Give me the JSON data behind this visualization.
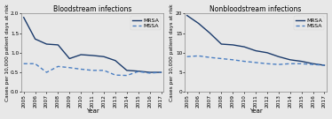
{
  "years": [
    2005,
    2006,
    2007,
    2008,
    2009,
    2010,
    2011,
    2012,
    2013,
    2014,
    2015,
    2016,
    2017
  ],
  "bloodstream": {
    "title": "Bloodstream infections",
    "ylabel": "Cases per 10,000 patient days at risk",
    "xlabel": "Year",
    "ylim": [
      0,
      2.0
    ],
    "yticks": [
      0,
      0.5,
      1.0,
      1.5,
      2.0
    ],
    "mrsa": [
      1.9,
      1.35,
      1.22,
      1.2,
      0.85,
      0.95,
      0.93,
      0.9,
      0.8,
      0.55,
      0.53,
      0.5,
      0.5
    ],
    "mssa": [
      0.72,
      0.72,
      0.5,
      0.65,
      0.62,
      0.58,
      0.55,
      0.55,
      0.43,
      0.42,
      0.52,
      0.48,
      0.5
    ]
  },
  "nonbloodstream": {
    "title": "Nonbloodstream infections",
    "ylabel": "Cases per 10,000 patient days at risk",
    "xlabel": "Year",
    "ylim": [
      0,
      20
    ],
    "yticks": [
      0,
      5,
      10,
      15,
      20
    ],
    "mrsa": [
      19.5,
      17.5,
      15.0,
      12.2,
      12.0,
      11.5,
      10.5,
      10.0,
      9.0,
      8.2,
      7.8,
      7.2,
      6.8
    ],
    "mssa": [
      9.0,
      9.2,
      8.8,
      8.5,
      8.2,
      7.8,
      7.5,
      7.2,
      7.0,
      7.2,
      7.2,
      7.0,
      6.8
    ]
  },
  "mrsa_color": "#1a3a6b",
  "mssa_color": "#4a7ec2",
  "line_width": 1.0,
  "font_size": 5.0,
  "title_font_size": 5.5,
  "tick_font_size": 4.2,
  "legend_font_size": 4.5,
  "bg_color": "#e8e8e8"
}
